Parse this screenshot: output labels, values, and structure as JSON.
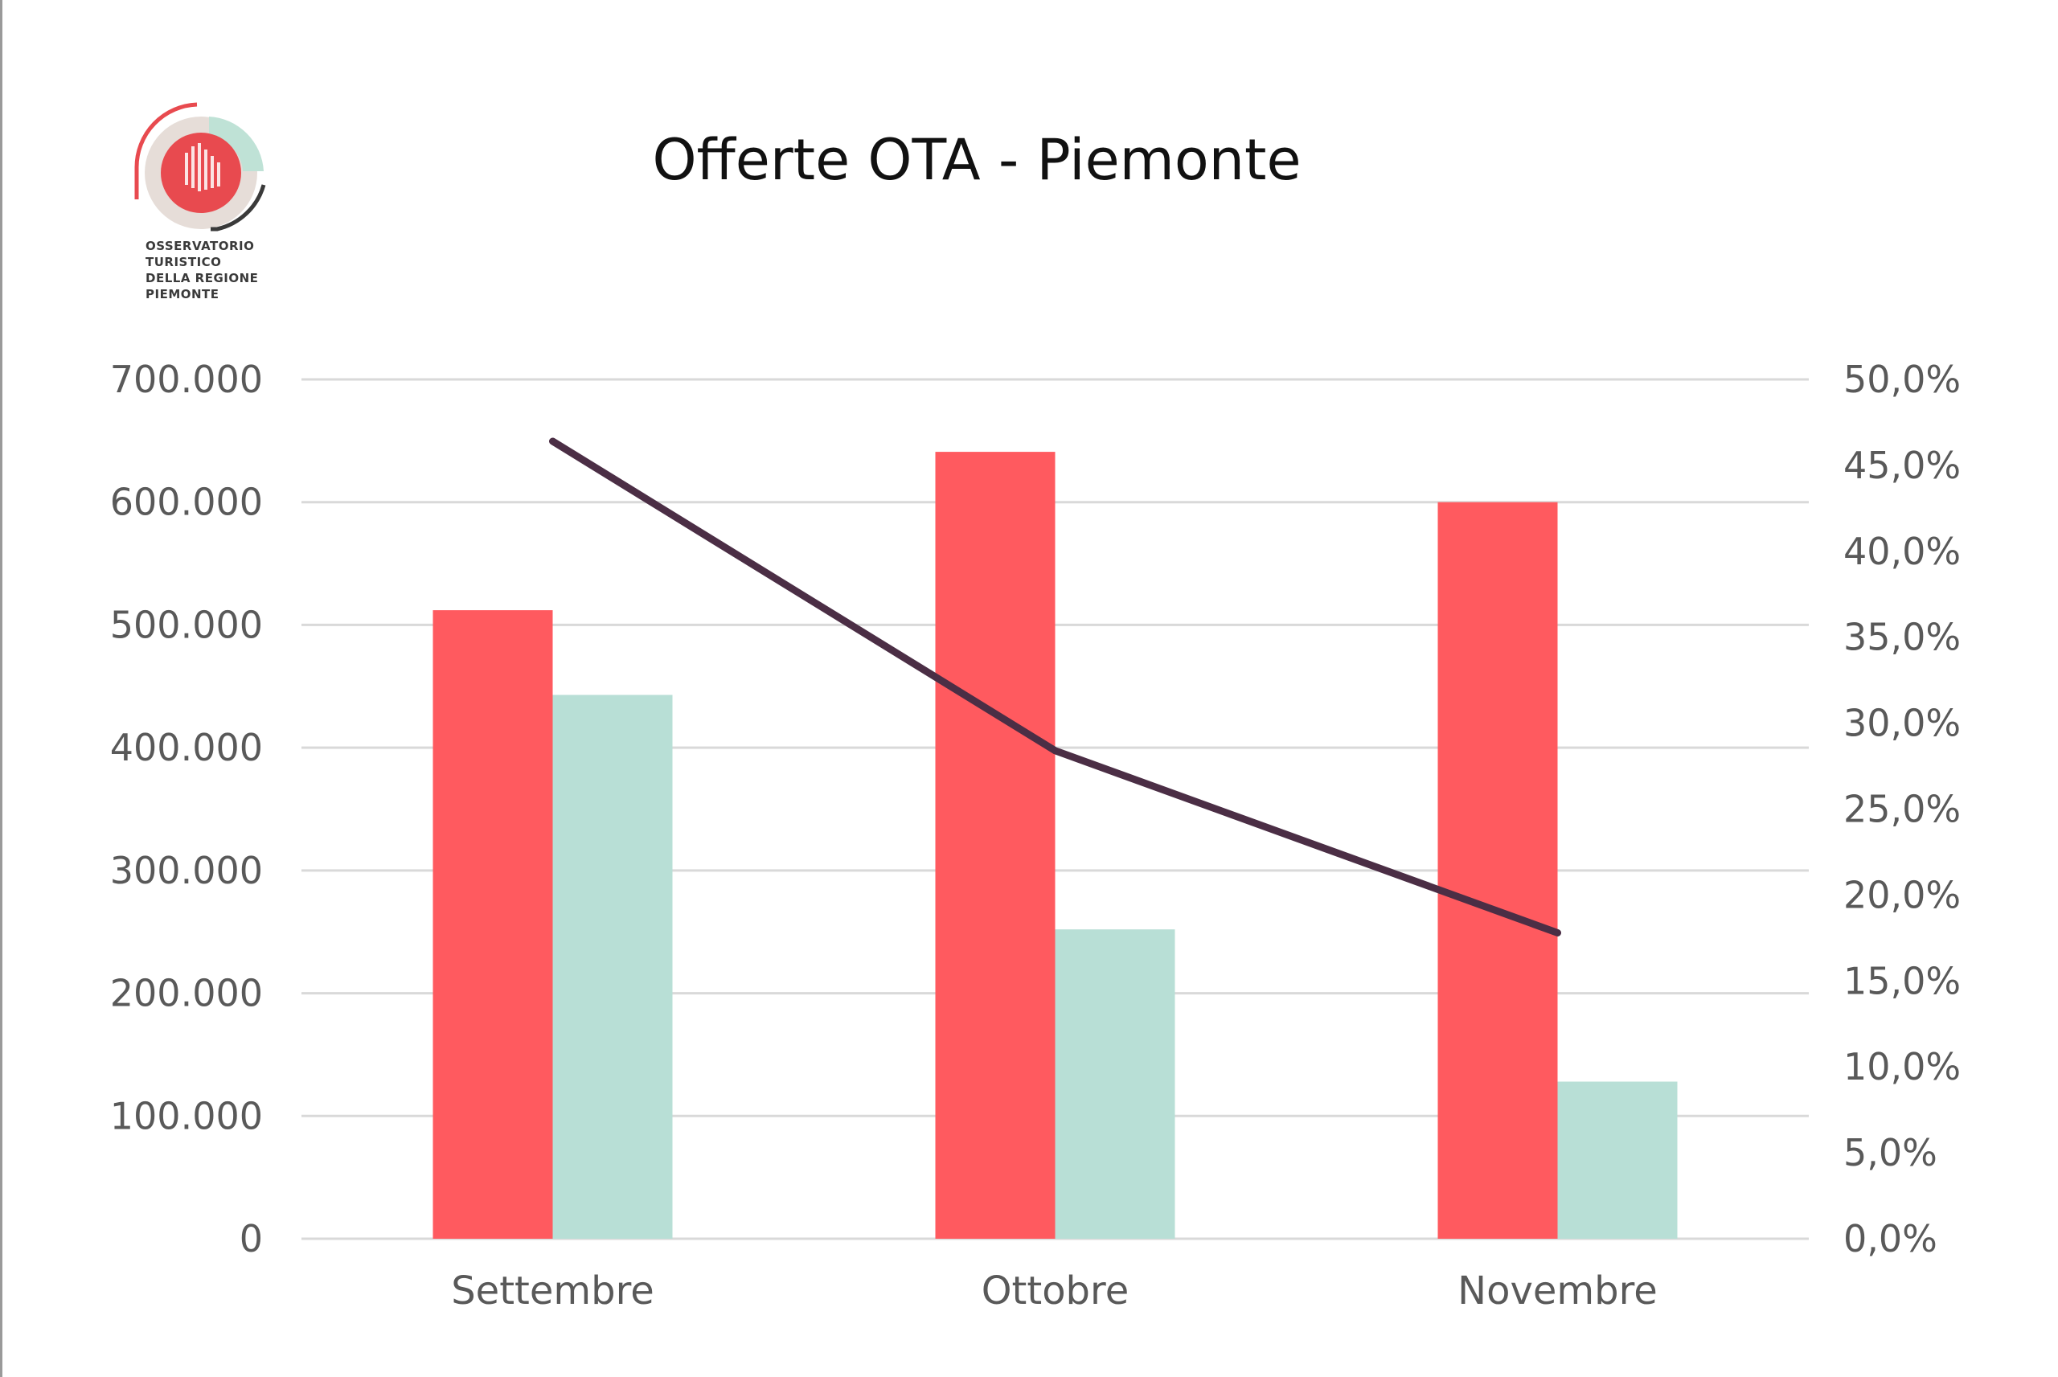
{
  "logo": {
    "lines": [
      "OSSERVATORIO",
      "TURISTICO",
      "DELLA REGIONE",
      "PIEMONTE"
    ]
  },
  "chart_data": {
    "type": "bar",
    "title": "Offerte OTA - Piemonte",
    "categories": [
      "Settembre",
      "Ottobre",
      "Novembre"
    ],
    "series": [
      {
        "values": [
          512000,
          641000,
          600000
        ],
        "color": "#ff5a5f",
        "axis": "left"
      },
      {
        "values": [
          443000,
          252000,
          128000
        ],
        "color": "#b8dfd6",
        "axis": "left"
      },
      {
        "type": "line",
        "values": [
          46.4,
          28.4,
          17.8
        ],
        "color": "#4b2e45",
        "axis": "right",
        "unit": "%"
      }
    ],
    "ylim": [
      0,
      700000
    ],
    "y2lim": [
      0,
      50
    ],
    "yticks": [
      "0",
      "100.000",
      "200.000",
      "300.000",
      "400.000",
      "500.000",
      "600.000",
      "700.000"
    ],
    "y2ticks": [
      "0,0%",
      "5,0%",
      "10,0%",
      "15,0%",
      "20,0%",
      "25,0%",
      "30,0%",
      "35,0%",
      "40,0%",
      "45,0%",
      "50,0%"
    ],
    "grid": true,
    "gridColor": "#d9d9d9",
    "xlabel": "",
    "ylabel": ""
  }
}
